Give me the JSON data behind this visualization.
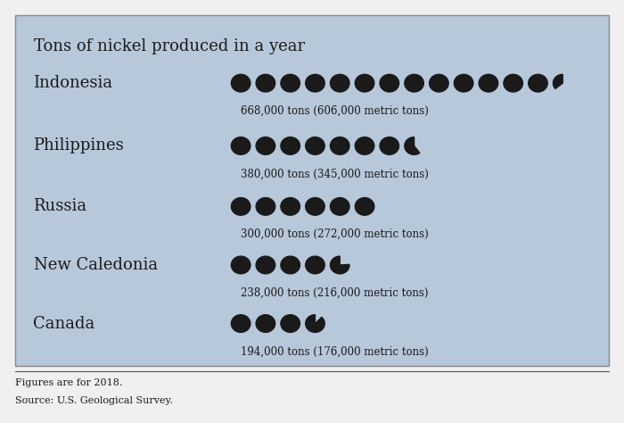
{
  "title": "Tons of nickel produced in a year",
  "bg_color": "#b8c8db",
  "circle_color": "#1a1a1a",
  "text_color": "#1a1a1a",
  "footnote_color": "#1a1a1a",
  "countries": [
    "Indonesia",
    "Philippines",
    "Russia",
    "New Caledonia",
    "Canada"
  ],
  "values_tons": [
    668000,
    380000,
    300000,
    238000,
    194000
  ],
  "labels": [
    "668,000 tons (606,000 metric tons)",
    "380,000 tons (345,000 metric tons)",
    "300,000 tons (272,000 metric tons)",
    "238,000 tons (216,000 metric tons)",
    "194,000 tons (176,000 metric tons)"
  ],
  "unit": 50000,
  "footnote1": "Figures are for 2018.",
  "footnote2": "Source: U.S. Geological Survey.",
  "outer_bg": "#f0f0f0"
}
